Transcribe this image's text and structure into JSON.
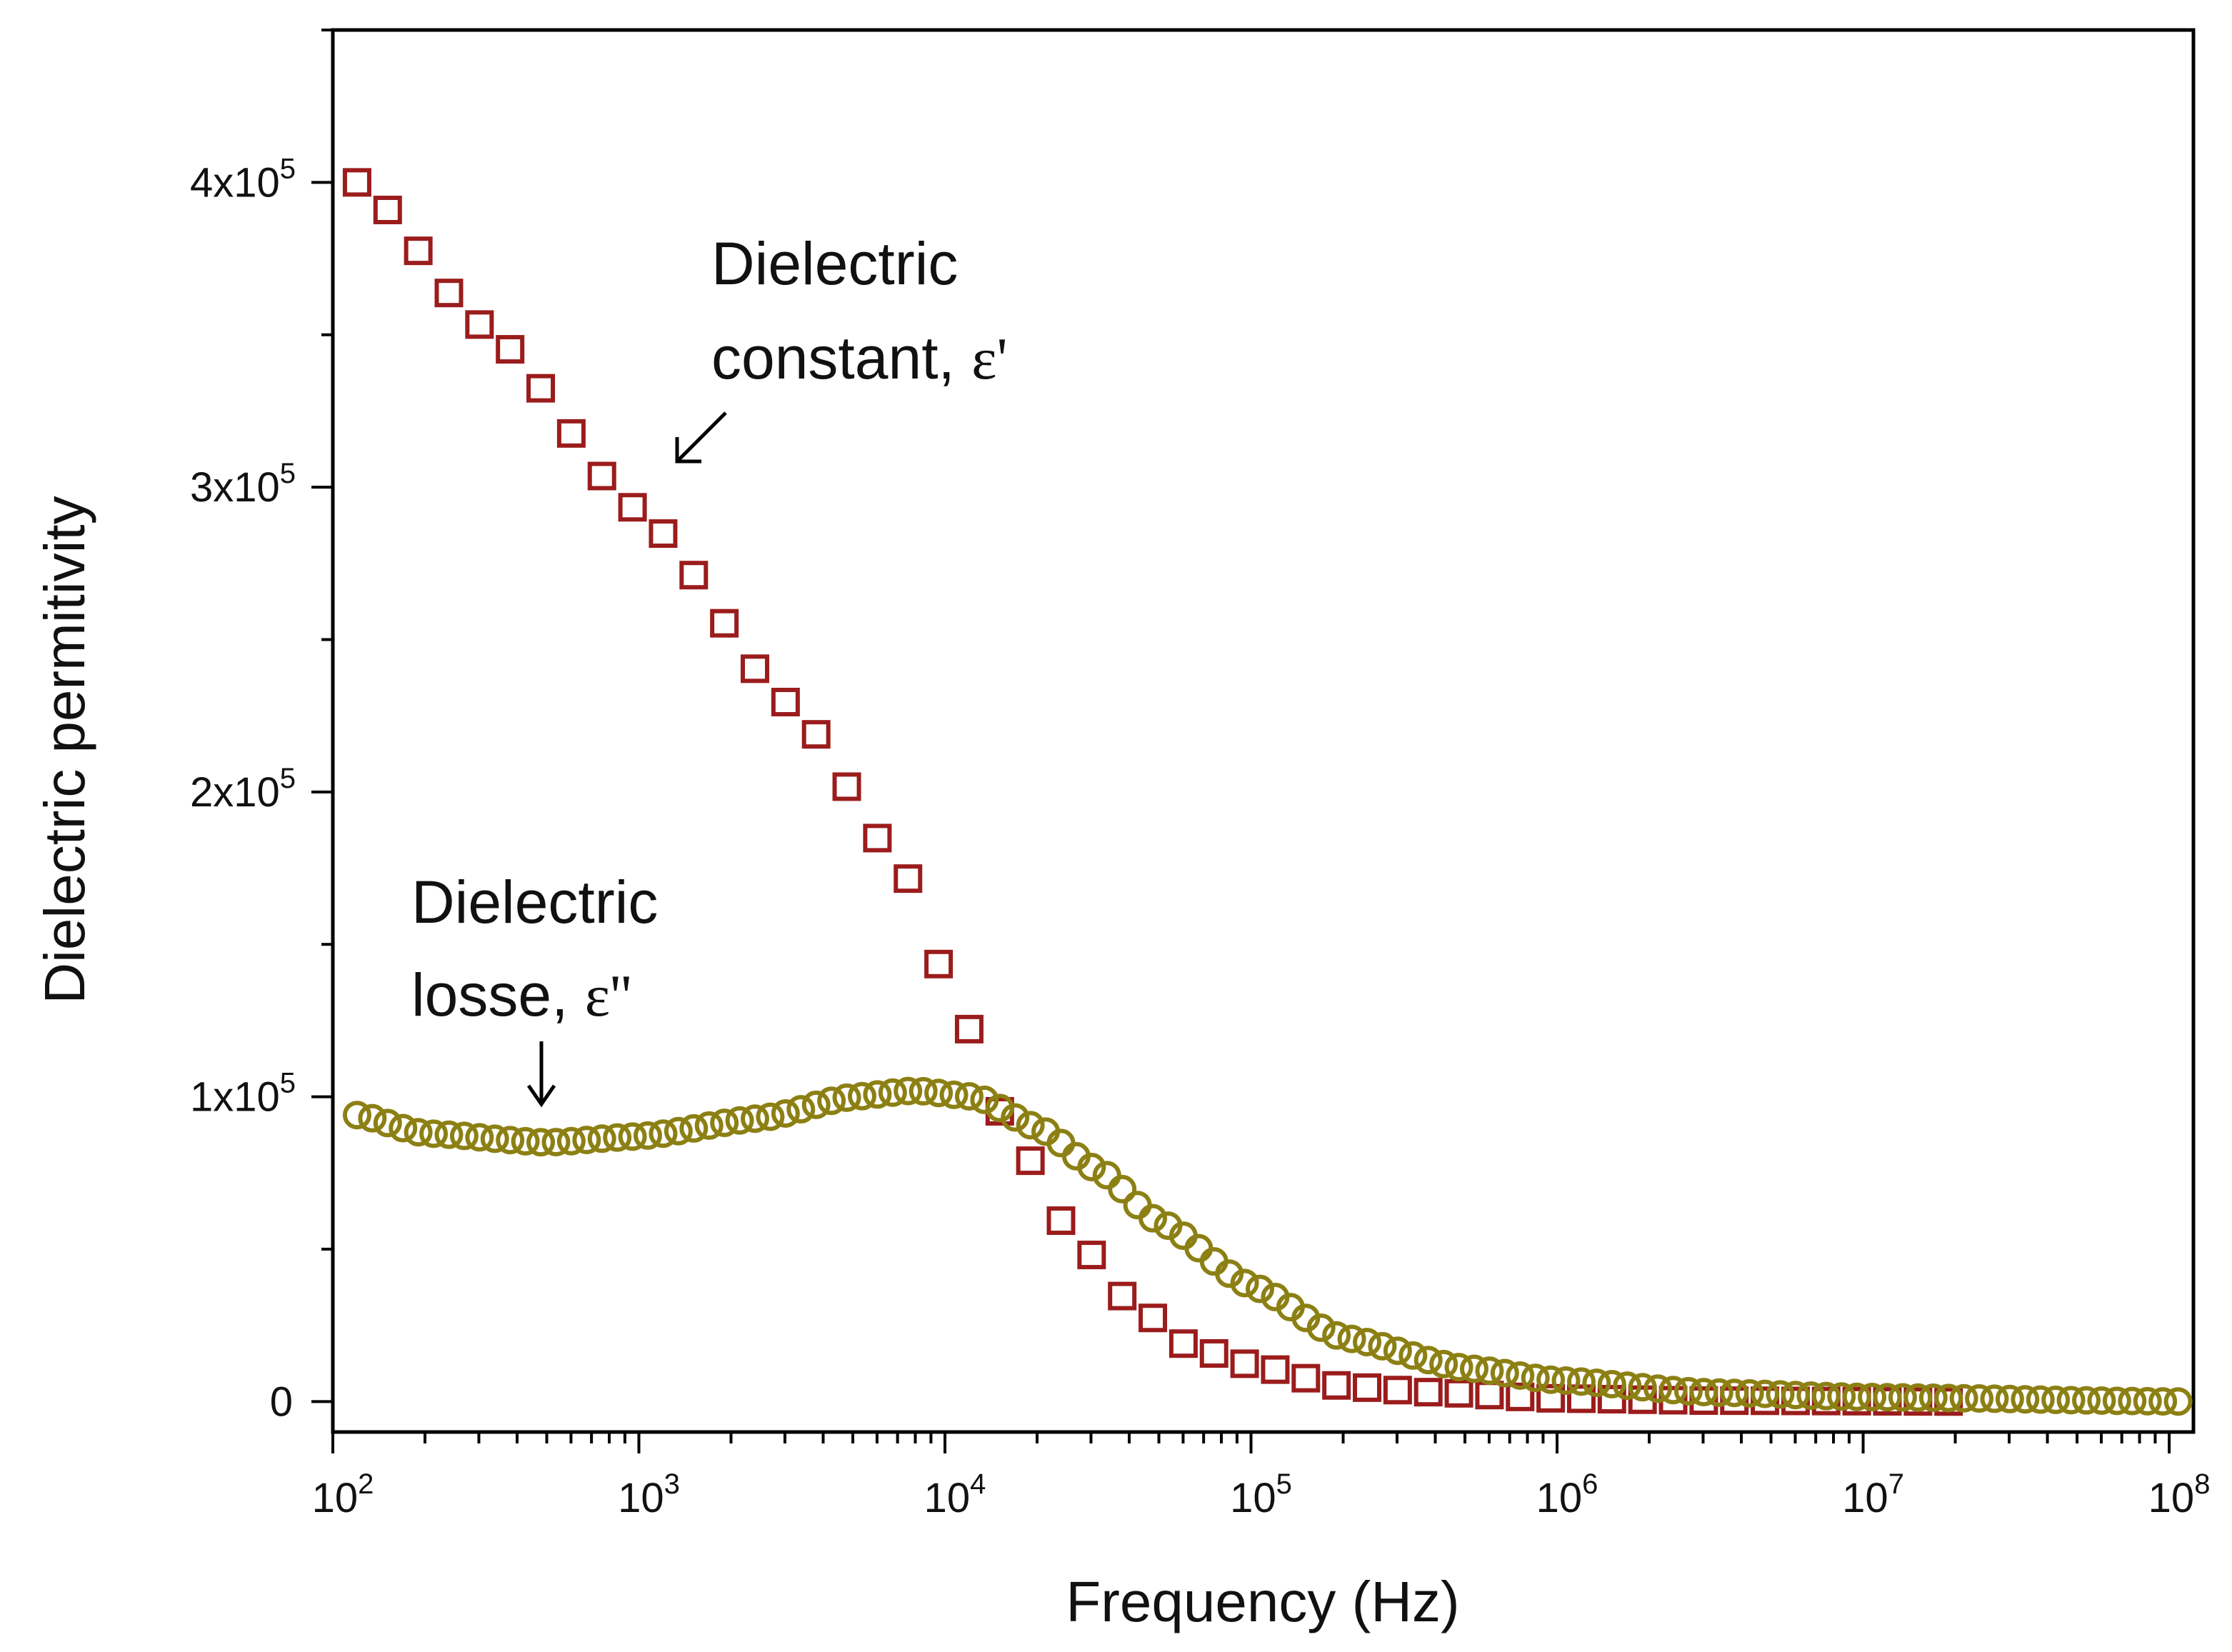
{
  "chart_data": {
    "type": "scatter",
    "title": "",
    "xlabel": "Frequency (Hz)",
    "ylabel": "Dielectric permitivity",
    "xscale": "log",
    "xlim": [
      100,
      120000000
    ],
    "ylim": [
      -10000,
      450000
    ],
    "grid": false,
    "x_ticks": [
      {
        "value": 100,
        "base": "10",
        "exp": "2"
      },
      {
        "value": 1000,
        "base": "10",
        "exp": "3"
      },
      {
        "value": 10000,
        "base": "10",
        "exp": "4"
      },
      {
        "value": 100000,
        "base": "10",
        "exp": "5"
      },
      {
        "value": 1000000,
        "base": "10",
        "exp": "6"
      },
      {
        "value": 10000000,
        "base": "10",
        "exp": "7"
      },
      {
        "value": 100000000,
        "base": "10",
        "exp": "8"
      }
    ],
    "y_ticks": [
      {
        "value": 0,
        "mant": "0",
        "exp": ""
      },
      {
        "value": 100000,
        "mant": "1x10",
        "exp": "5"
      },
      {
        "value": 200000,
        "mant": "2x10",
        "exp": "5"
      },
      {
        "value": 300000,
        "mant": "3x10",
        "exp": "5"
      },
      {
        "value": 400000,
        "mant": "4x10",
        "exp": "5"
      }
    ],
    "series": [
      {
        "name": "Dielectric constant, ε'",
        "marker": "square",
        "color": "#9b1c1c",
        "x_start": 120,
        "x_end": 20000000,
        "points_per_decade": 10,
        "anchors_log10x": [
          2.08,
          2.5,
          3.0,
          3.5,
          3.85,
          4.0,
          4.2,
          4.4,
          4.6,
          4.8,
          5.0,
          5.3,
          5.6,
          6.0,
          6.5,
          7.3
        ],
        "anchors_y": [
          400000,
          352000,
          292000,
          228000,
          177000,
          140000,
          92000,
          57000,
          33000,
          18000,
          12000,
          5000,
          3000,
          1000,
          300,
          0
        ]
      },
      {
        "name": "Dielectric losse, ε''",
        "marker": "circle",
        "color": "#8c8014",
        "x_start": 120,
        "x_end": 110000000,
        "points_per_decade": 20,
        "anchors_log10x": [
          2.08,
          2.3,
          2.7,
          3.0,
          3.4,
          3.7,
          3.9,
          4.1,
          4.3,
          4.5,
          4.7,
          5.0,
          5.3,
          5.7,
          6.0,
          6.5,
          7.0,
          8.04
        ],
        "anchors_y": [
          94000,
          88000,
          85000,
          87000,
          93000,
          100000,
          102000,
          100000,
          90000,
          76000,
          59000,
          38000,
          21000,
          11000,
          7000,
          3000,
          1500,
          0
        ]
      }
    ],
    "annotations": [
      {
        "line1": "Dielectric",
        "line2": "constant, ",
        "symbol": "ε'"
      },
      {
        "line1": "Dielectric",
        "line2": "losse, ",
        "symbol": "ε''"
      }
    ]
  }
}
